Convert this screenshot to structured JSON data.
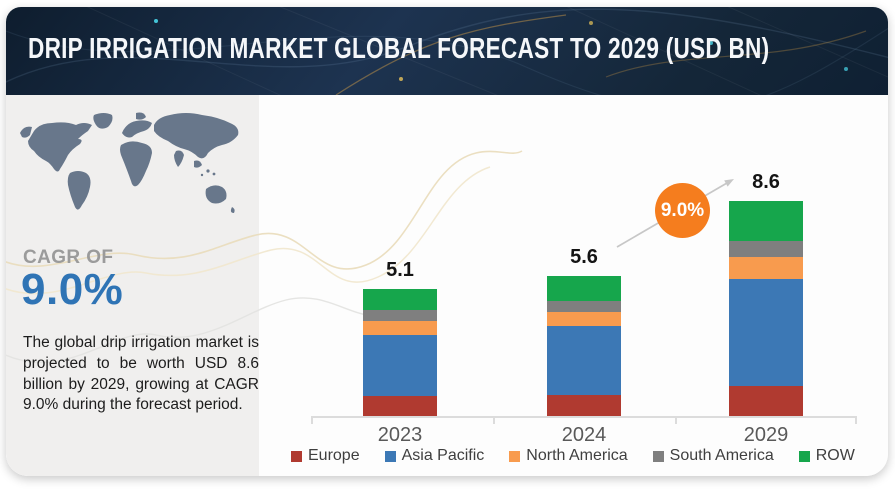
{
  "header": {
    "title": "DRIP IRRIGATION MARKET GLOBAL FORECAST TO 2029 (USD BN)"
  },
  "sidebar": {
    "map_icon": "world-map",
    "cagr_label": "CAGR OF",
    "cagr_value": "9.0%",
    "description": "The global drip irrigation market is projected to be worth USD 8.6 billion by 2029, growing at CAGR 9.0% during the forecast period."
  },
  "chart_data": {
    "type": "bar",
    "stacked": true,
    "title": "DRIP IRRIGATION MARKET GLOBAL FORECAST TO 2029 (USD BN)",
    "unit": "USD BN",
    "categories": [
      "2023",
      "2024",
      "2029"
    ],
    "totals": [
      5.1,
      5.6,
      8.6
    ],
    "series": [
      {
        "name": "Europe",
        "color": "#b03a30",
        "values": [
          0.8,
          0.85,
          1.2
        ]
      },
      {
        "name": "Asia Pacific",
        "color": "#3c78b5",
        "values": [
          2.45,
          2.75,
          4.3
        ]
      },
      {
        "name": "North America",
        "color": "#f89b4e",
        "values": [
          0.55,
          0.55,
          0.85
        ]
      },
      {
        "name": "South America",
        "color": "#7f7f7f",
        "values": [
          0.45,
          0.45,
          0.65
        ]
      },
      {
        "name": "ROW",
        "color": "#16a64c",
        "values": [
          0.85,
          1.0,
          1.6
        ]
      }
    ],
    "annotation": {
      "label": "9.0%",
      "color": "#f57d1e"
    },
    "legend_position": "bottom",
    "grid": false,
    "ylim": [
      0,
      9
    ]
  }
}
